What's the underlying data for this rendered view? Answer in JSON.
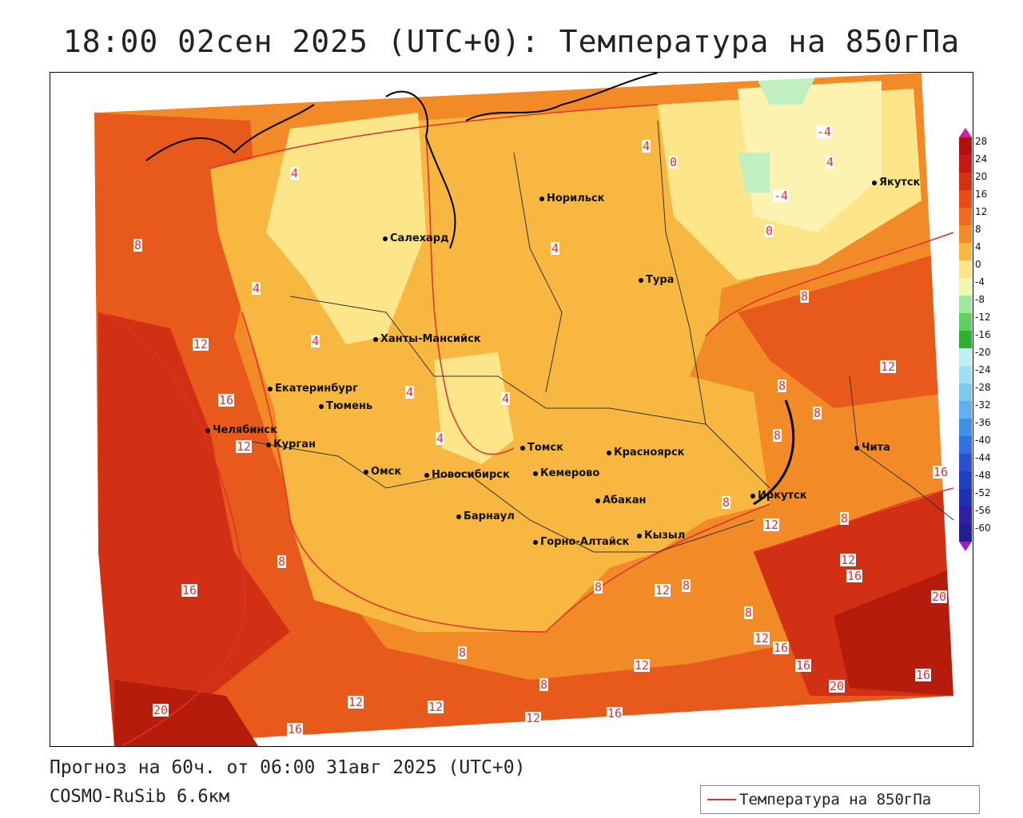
{
  "title": "18:00 02сен 2025 (UTC+0): Температура на 850гПа",
  "footer": {
    "forecast": "Прогноз на 60ч. от 06:00 31авг 2025 (UTC+0)",
    "model": "COSMO-RuSib 6.6км"
  },
  "legend": {
    "label": "Температура на 850гПа",
    "color": "#e03030"
  },
  "colors": {
    "t_below_0": "#fdf3b0",
    "t_0_4": "#fde68a",
    "t_4_8": "#f8b740",
    "t_8_12": "#f28a28",
    "t_12_16": "#e85a1c",
    "t_16_20": "#d23014",
    "t_20_24": "#b51c0c",
    "isoline": "#e03030",
    "cold": "#c0f0c0"
  },
  "colorbar": {
    "ticks": [
      "28",
      "24",
      "20",
      "16",
      "12",
      "8",
      "4",
      "0",
      "-4",
      "-8",
      "-12",
      "-16",
      "-20",
      "-24",
      "-28",
      "-32",
      "-36",
      "-40",
      "-44",
      "-48",
      "-52",
      "-56",
      "-60"
    ]
  },
  "cities": [
    {
      "name": "Норильск",
      "icon": "city-dot-icon"
    },
    {
      "name": "Якутск",
      "icon": "city-dot-icon"
    },
    {
      "name": "Салехард",
      "icon": "city-dot-icon"
    },
    {
      "name": "Тура",
      "icon": "city-dot-icon"
    },
    {
      "name": "Ханты-Мансийск",
      "icon": "city-dot-icon"
    },
    {
      "name": "Екатеринбург",
      "icon": "city-dot-icon"
    },
    {
      "name": "Тюмень",
      "icon": "city-dot-icon"
    },
    {
      "name": "Челябинск",
      "icon": "city-dot-icon"
    },
    {
      "name": "Курган",
      "icon": "city-dot-icon"
    },
    {
      "name": "Омск",
      "icon": "city-dot-icon"
    },
    {
      "name": "Новосибирск",
      "icon": "city-dot-icon"
    },
    {
      "name": "Томск",
      "icon": "city-dot-icon"
    },
    {
      "name": "Кемерово",
      "icon": "city-dot-icon"
    },
    {
      "name": "Красноярск",
      "icon": "city-dot-icon"
    },
    {
      "name": "Барнаул",
      "icon": "city-dot-icon"
    },
    {
      "name": "Абакан",
      "icon": "city-dot-icon"
    },
    {
      "name": "Горно-Алтайск",
      "icon": "city-dot-icon"
    },
    {
      "name": "Кызыл",
      "icon": "city-dot-icon"
    },
    {
      "name": "Иркутск",
      "icon": "city-dot-icon"
    },
    {
      "name": "Чита",
      "icon": "city-dot-icon"
    }
  ],
  "contour_labels": [
    "4",
    "4",
    "0",
    "-4",
    "-4",
    "4",
    "0",
    "8",
    "4",
    "4",
    "8",
    "12",
    "4",
    "4",
    "16",
    "12",
    "4",
    "4",
    "8",
    "12",
    "8",
    "8",
    "8",
    "16",
    "8",
    "12",
    "8",
    "12",
    "16",
    "16",
    "8",
    "12",
    "8",
    "20",
    "8",
    "12",
    "16",
    "16",
    "12",
    "8",
    "12",
    "20",
    "12",
    "16",
    "12",
    "16",
    "20",
    "16",
    "8"
  ]
}
